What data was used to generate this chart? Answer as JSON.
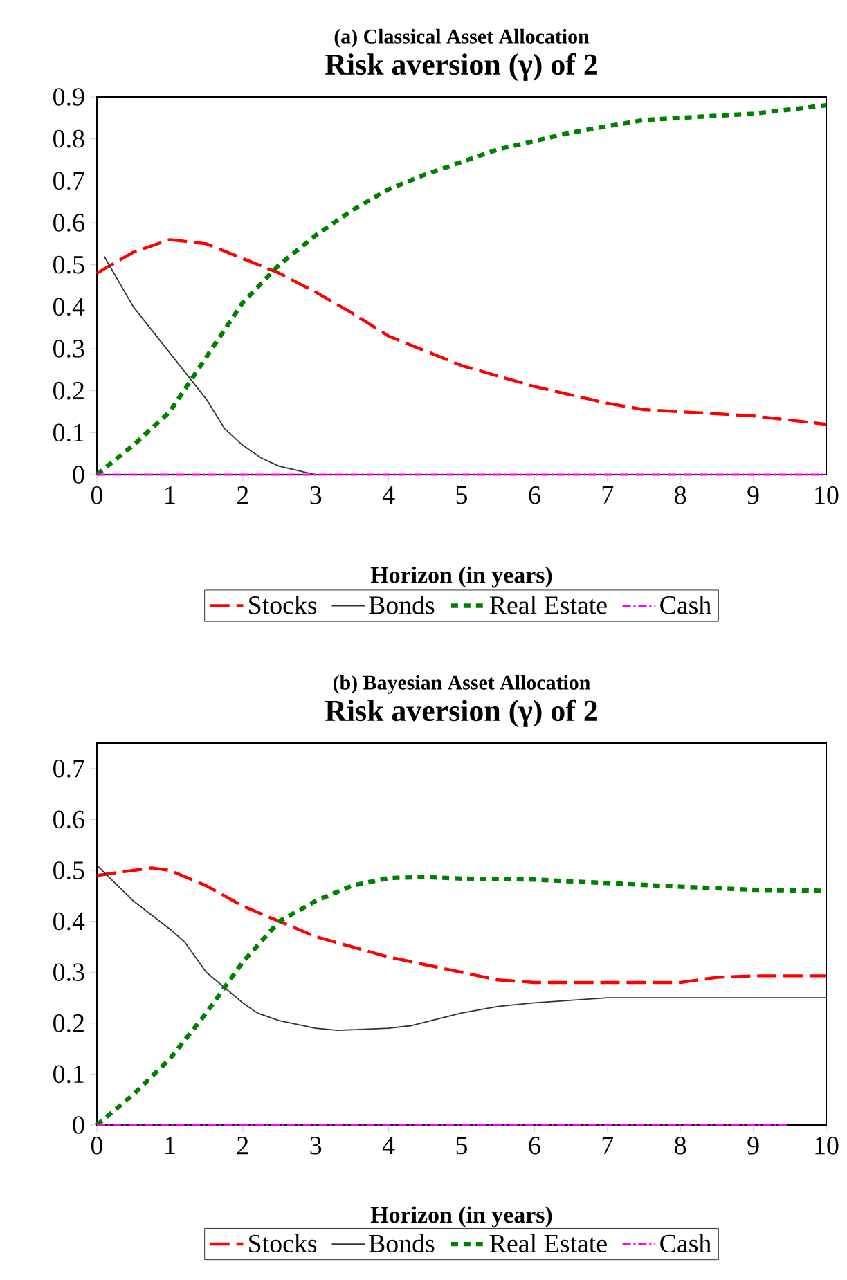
{
  "chart_data": [
    {
      "type": "line",
      "title": "(a) Classical Asset Allocation",
      "subtitle": "Risk aversion (γ) of 2",
      "xlabel": "Horizon (in years)",
      "xlim": [
        0,
        10
      ],
      "xticks": [
        0,
        1,
        2,
        3,
        4,
        5,
        6,
        7,
        8,
        9,
        10
      ],
      "ylim": [
        0,
        0.9
      ],
      "yticks": [
        0,
        0.1,
        0.2,
        0.3,
        0.4,
        0.5,
        0.6,
        0.7,
        0.8,
        0.9
      ],
      "legend": "bottom",
      "grid": false,
      "marker": "none",
      "series": [
        {
          "name": "Stocks",
          "color": "#ff0000",
          "line_style": "dashed",
          "x": [
            0,
            0.5,
            1,
            1.5,
            2,
            2.5,
            3,
            3.5,
            4,
            4.5,
            5,
            5.5,
            6,
            6.5,
            7,
            7.5,
            8,
            8.5,
            9,
            9.5,
            10
          ],
          "values": [
            0.48,
            0.53,
            0.56,
            0.55,
            0.515,
            0.48,
            0.435,
            0.385,
            0.33,
            0.295,
            0.26,
            0.235,
            0.21,
            0.19,
            0.17,
            0.155,
            0.15,
            0.145,
            0.14,
            0.13,
            0.12
          ]
        },
        {
          "name": "Bonds",
          "color": "#333333",
          "line_style": "solid",
          "x": [
            0.1,
            0.5,
            1,
            1.5,
            1.75,
            2,
            2.25,
            2.5,
            3,
            3.5,
            4,
            5,
            6,
            7,
            8,
            9,
            10
          ],
          "values": [
            0.52,
            0.4,
            0.29,
            0.18,
            0.11,
            0.07,
            0.04,
            0.02,
            0,
            0,
            0,
            0,
            0,
            0,
            0,
            0,
            0
          ]
        },
        {
          "name": "Real Estate",
          "color": "#008000",
          "line_style": "dotted",
          "x": [
            0,
            0.5,
            1,
            1.5,
            2,
            2.5,
            3,
            3.5,
            4,
            4.5,
            5,
            5.5,
            6,
            6.5,
            7,
            7.5,
            8,
            8.5,
            9,
            9.5,
            10
          ],
          "values": [
            0,
            0.07,
            0.15,
            0.28,
            0.41,
            0.5,
            0.57,
            0.63,
            0.68,
            0.715,
            0.745,
            0.775,
            0.795,
            0.815,
            0.83,
            0.845,
            0.85,
            0.855,
            0.86,
            0.87,
            0.88
          ]
        },
        {
          "name": "Cash",
          "color": "#ff00ff",
          "line_style": "dashdot",
          "x": [
            0,
            10
          ],
          "values": [
            0,
            0
          ]
        }
      ]
    },
    {
      "type": "line",
      "title": "(b) Bayesian Asset Allocation",
      "subtitle": "Risk aversion (γ) of 2",
      "xlabel": "Horizon (in years)",
      "xlim": [
        0,
        10
      ],
      "xticks": [
        0,
        1,
        2,
        3,
        4,
        5,
        6,
        7,
        8,
        9,
        10
      ],
      "ylim": [
        0,
        0.75
      ],
      "yticks": [
        0,
        0.1,
        0.2,
        0.3,
        0.4,
        0.5,
        0.6,
        0.7
      ],
      "legend": "bottom",
      "grid": false,
      "marker": "none",
      "series": [
        {
          "name": "Stocks",
          "color": "#ff0000",
          "line_style": "dashed",
          "x": [
            0,
            0.5,
            0.75,
            1,
            1.5,
            2,
            2.5,
            3,
            3.5,
            4,
            4.5,
            5,
            5.5,
            6,
            7,
            8,
            8.5,
            9,
            10
          ],
          "values": [
            0.49,
            0.5,
            0.505,
            0.5,
            0.47,
            0.43,
            0.4,
            0.37,
            0.35,
            0.33,
            0.315,
            0.3,
            0.285,
            0.28,
            0.28,
            0.28,
            0.29,
            0.293,
            0.293
          ]
        },
        {
          "name": "Bonds",
          "color": "#333333",
          "line_style": "solid",
          "x": [
            0,
            0.5,
            1,
            1.2,
            1.5,
            2,
            2.2,
            2.5,
            3,
            3.3,
            4,
            4.3,
            5,
            5.5,
            6,
            7,
            8,
            10
          ],
          "values": [
            0.51,
            0.44,
            0.385,
            0.36,
            0.3,
            0.24,
            0.22,
            0.205,
            0.19,
            0.186,
            0.19,
            0.195,
            0.22,
            0.233,
            0.24,
            0.25,
            0.25,
            0.25
          ]
        },
        {
          "name": "Real Estate",
          "color": "#008000",
          "line_style": "dotted",
          "x": [
            0,
            0.5,
            1,
            1.5,
            2,
            2.5,
            3,
            3.5,
            4,
            4.5,
            5,
            6,
            7,
            8,
            9,
            10
          ],
          "values": [
            0,
            0.06,
            0.13,
            0.22,
            0.32,
            0.4,
            0.44,
            0.47,
            0.485,
            0.487,
            0.484,
            0.482,
            0.475,
            0.468,
            0.462,
            0.46
          ]
        },
        {
          "name": "Cash",
          "color": "#ff00ff",
          "line_style": "dashdot",
          "x": [
            0,
            9.5
          ],
          "values": [
            0,
            0
          ]
        }
      ]
    }
  ]
}
